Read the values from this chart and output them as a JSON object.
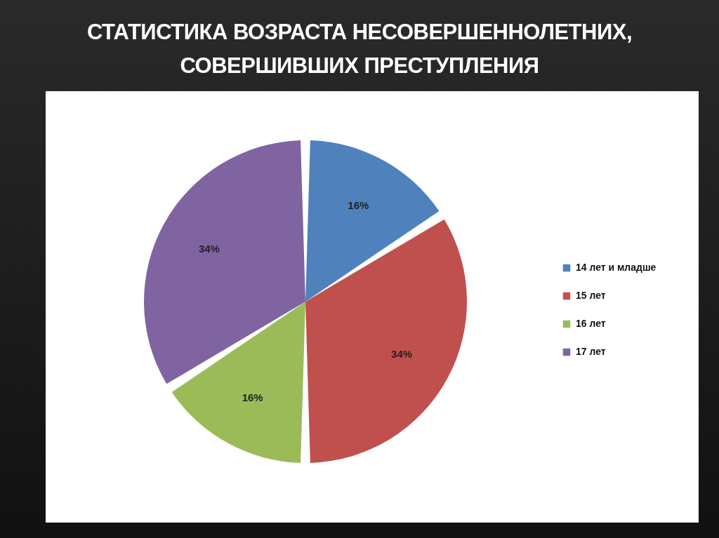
{
  "chart_data": {
    "type": "pie",
    "title": "СТАТИСТИКА ВОЗРАСТА НЕСОВЕРШЕННОЛЕТНИХ, СОВЕРШИВШИХ ПРЕСТУПЛЕНИЯ",
    "categories": [
      "14 лет и младше",
      "15 лет",
      "16 лет",
      "17 лет"
    ],
    "values": [
      16,
      34,
      16,
      34
    ],
    "value_labels": [
      "16%",
      "34%",
      "16%",
      "34%"
    ],
    "colors": [
      "#4f81bd",
      "#c0504d",
      "#9bbb59",
      "#8064a2"
    ],
    "legend": "right"
  }
}
